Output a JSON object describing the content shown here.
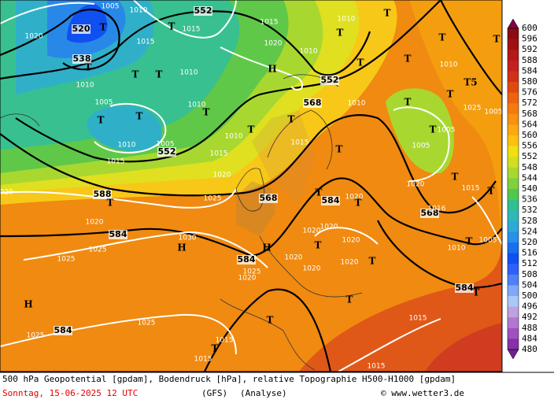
{
  "map": {
    "labels": [
      "1005",
      "1010",
      "520",
      "T",
      "538",
      "T",
      "1015",
      "1010",
      "1005",
      "T",
      "T",
      "1010",
      "552",
      "1005",
      "1015",
      "552",
      "1015",
      "T",
      "T",
      "T",
      "1010",
      "1010",
      "T",
      "1010",
      "T",
      "1015",
      "1020",
      "H",
      "1010",
      "552",
      "568",
      "T",
      "1010",
      "1015",
      "T",
      "1020",
      "1025",
      "568",
      "T",
      "584",
      "1020",
      "T",
      "1020",
      "1020",
      "1020",
      "T",
      "1020",
      "T",
      "1030",
      "H",
      "584",
      "1020",
      "1025",
      "1025",
      "584",
      "H",
      "1020",
      "1025",
      "1020",
      "1020",
      "T",
      "H",
      "584",
      "1025",
      "1025",
      "T",
      "1015",
      "1015",
      "T",
      "1015",
      "1015",
      "584",
      "T",
      "568",
      "T",
      "1005",
      "T",
      "1005",
      "T",
      "1015",
      "T",
      "T",
      "T",
      "T",
      "1010",
      "T5",
      "T",
      "1025",
      "1005",
      "1010",
      "T",
      "T",
      "T",
      "1015",
      "1020",
      "588",
      "T",
      "1020",
      "1016",
      "T",
      "1005",
      "1010",
      "1020"
    ]
  },
  "colorbar": {
    "labels": [
      "600",
      "596",
      "592",
      "588",
      "584",
      "580",
      "576",
      "572",
      "568",
      "564",
      "560",
      "556",
      "552",
      "548",
      "544",
      "540",
      "536",
      "532",
      "528",
      "524",
      "520",
      "516",
      "512",
      "508",
      "504",
      "500",
      "496",
      "492",
      "488",
      "484",
      "480"
    ]
  },
  "footer": {
    "line1": "500 hPa Geopotential [gpdam], Bodendruck [hPa], relative Topographie H500-H1000 [gpdam]",
    "date": "Sonntag, 15-06-2025  12 UTC",
    "model": "(GFS)",
    "run": "(Analyse)",
    "site": "© www.wetter3.de"
  }
}
